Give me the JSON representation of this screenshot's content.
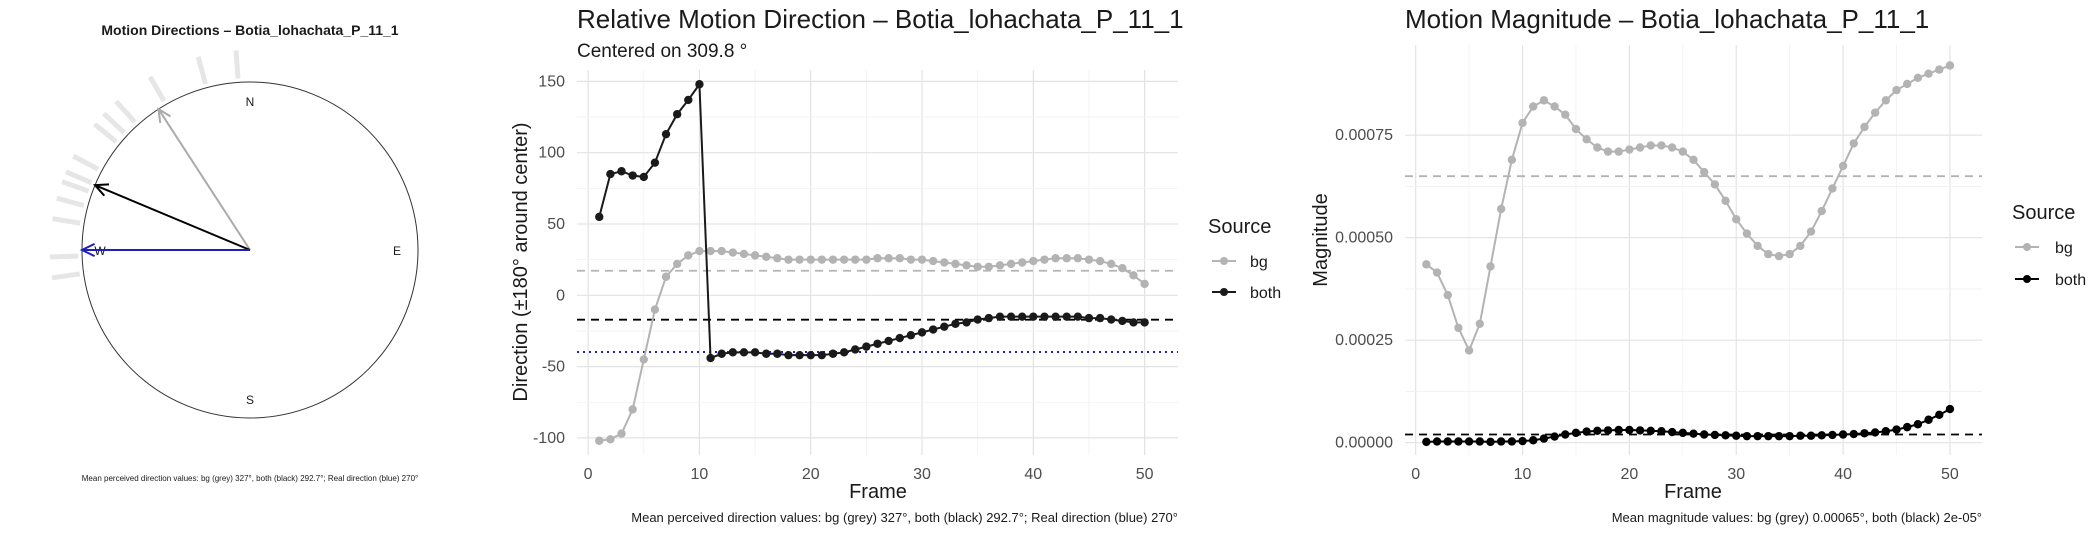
{
  "chart_data": [
    {
      "type": "circular",
      "title": "Motion Directions – Botia_lohachata_P_11_1",
      "compass_labels": [
        "N",
        "E",
        "S",
        "W"
      ],
      "arrows": [
        {
          "name": "bg",
          "direction_deg": 327,
          "color": "#aaaaaa"
        },
        {
          "name": "both",
          "direction_deg": 292.7,
          "color": "#000000"
        },
        {
          "name": "real",
          "direction_deg": 270,
          "color": "#1f1fbf"
        }
      ],
      "ticks_deg": [
        285,
        290,
        293,
        298,
        309,
        313,
        318,
        330,
        345,
        356,
        262,
        268,
        279
      ],
      "caption": "Mean perceived direction values: bg (grey) 327°, both (black) 292.7°; Real direction (blue) 270°"
    },
    {
      "type": "line",
      "title": "Relative Motion Direction – Botia_lohachata_P_11_1",
      "subtitle": "Centered on  309.8 °",
      "xlabel": "Frame",
      "ylabel": "Direction (±180° around center)",
      "xlim": [
        -1,
        53
      ],
      "ylim": [
        -112,
        158
      ],
      "xticks": [
        0,
        10,
        20,
        30,
        40,
        50
      ],
      "yticks": [
        -100,
        -50,
        0,
        50,
        100,
        150
      ],
      "x": [
        1,
        2,
        3,
        4,
        5,
        6,
        7,
        8,
        9,
        10,
        11,
        12,
        13,
        14,
        15,
        16,
        17,
        18,
        19,
        20,
        21,
        22,
        23,
        24,
        25,
        26,
        27,
        28,
        29,
        30,
        31,
        32,
        33,
        34,
        35,
        36,
        37,
        38,
        39,
        40,
        41,
        42,
        43,
        44,
        45,
        46,
        47,
        48,
        49,
        50
      ],
      "series": [
        {
          "name": "bg",
          "color": "#b3b3b3",
          "values": [
            -102,
            -101,
            -97,
            -80,
            -45,
            -10,
            13,
            22,
            28,
            31,
            31,
            31,
            30,
            29,
            28,
            27,
            26,
            25,
            25,
            25,
            25,
            25,
            25,
            25,
            25,
            26,
            26,
            26,
            25,
            25,
            24,
            23,
            22,
            21,
            20,
            20,
            21,
            22,
            23,
            24,
            25,
            26,
            26,
            26,
            25,
            24,
            22,
            19,
            14,
            8
          ]
        },
        {
          "name": "both",
          "color": "#1a1a1a",
          "values": [
            55,
            85,
            87,
            84,
            83,
            93,
            113,
            127,
            137,
            148,
            -44,
            -41,
            -40,
            -40,
            -40,
            -41,
            -41,
            -42,
            -42,
            -42,
            -42,
            -41,
            -40,
            -38,
            -36,
            -34,
            -32,
            -30,
            -28,
            -26,
            -24,
            -22,
            -20,
            -19,
            -17,
            -16,
            -15,
            -15,
            -15,
            -15,
            -15,
            -15,
            -15,
            -15,
            -16,
            -16,
            -17,
            -18,
            -19,
            -19
          ]
        }
      ],
      "hlines": [
        {
          "name": "bg mean",
          "y": 17.2,
          "color": "#b3b3b3",
          "style": "dashed"
        },
        {
          "name": "both mean",
          "y": -17.1,
          "color": "#000000",
          "style": "dashed"
        },
        {
          "name": "real",
          "y": -39.8,
          "color": "#1f1fbf",
          "style": "dotted"
        }
      ],
      "legend": {
        "title": "Source",
        "items": [
          "bg",
          "both"
        ],
        "position": "right"
      },
      "caption": "Mean perceived direction values: bg (grey) 327°, both (black) 292.7°; Real direction (blue) 270°"
    },
    {
      "type": "line",
      "title": "Motion Magnitude – Botia_lohachata_P_11_1",
      "xlabel": "Frame",
      "ylabel": "Magnitude",
      "xlim": [
        -1,
        53
      ],
      "ylim": [
        -3e-05,
        0.00097
      ],
      "xticks": [
        0,
        10,
        20,
        30,
        40,
        50
      ],
      "yticks": [
        0,
        0.00025,
        0.0005,
        0.00075
      ],
      "ytick_labels": [
        "0.00000",
        "0.00025",
        "0.00050",
        "0.00075"
      ],
      "x": [
        1,
        2,
        3,
        4,
        5,
        6,
        7,
        8,
        9,
        10,
        11,
        12,
        13,
        14,
        15,
        16,
        17,
        18,
        19,
        20,
        21,
        22,
        23,
        24,
        25,
        26,
        27,
        28,
        29,
        30,
        31,
        32,
        33,
        34,
        35,
        36,
        37,
        38,
        39,
        40,
        41,
        42,
        43,
        44,
        45,
        46,
        47,
        48,
        49,
        50
      ],
      "series": [
        {
          "name": "bg",
          "color": "#b3b3b3",
          "values": [
            0.000435,
            0.000415,
            0.00036,
            0.00028,
            0.000225,
            0.00029,
            0.00043,
            0.00057,
            0.00069,
            0.00078,
            0.00082,
            0.000835,
            0.00082,
            0.0008,
            0.000765,
            0.00074,
            0.00072,
            0.00071,
            0.00071,
            0.000715,
            0.00072,
            0.000725,
            0.000725,
            0.00072,
            0.00071,
            0.00069,
            0.00066,
            0.00063,
            0.00059,
            0.000545,
            0.00051,
            0.00048,
            0.00046,
            0.000455,
            0.00046,
            0.00048,
            0.000515,
            0.000565,
            0.00062,
            0.000675,
            0.00073,
            0.00077,
            0.000805,
            0.000835,
            0.00086,
            0.000875,
            0.00089,
            0.0009,
            0.00091,
            0.00092
          ]
        },
        {
          "name": "both",
          "color": "#000000",
          "values": [
            2e-06,
            3e-06,
            3e-06,
            3e-06,
            3e-06,
            3e-06,
            2e-06,
            3e-06,
            3e-06,
            4e-06,
            6e-06,
            1e-05,
            1.5e-05,
            2e-05,
            2.4e-05,
            2.7e-05,
            2.9e-05,
            3e-05,
            3.1e-05,
            3.1e-05,
            3e-05,
            2.9e-05,
            2.8e-05,
            2.6e-05,
            2.4e-05,
            2.2e-05,
            2e-05,
            1.9e-05,
            1.8e-05,
            1.7e-05,
            1.6e-05,
            1.6e-05,
            1.6e-05,
            1.6e-05,
            1.6e-05,
            1.7e-05,
            1.7e-05,
            1.8e-05,
            1.9e-05,
            2e-05,
            2.1e-05,
            2.3e-05,
            2.5e-05,
            2.8e-05,
            3.2e-05,
            3.8e-05,
            4.5e-05,
            5.6e-05,
            6.8e-05,
            8.2e-05
          ]
        }
      ],
      "hlines": [
        {
          "name": "bg mean",
          "y": 0.00065,
          "color": "#b3b3b3",
          "style": "dashed"
        },
        {
          "name": "both mean",
          "y": 2e-05,
          "color": "#000000",
          "style": "dashed"
        }
      ],
      "legend": {
        "title": "Source",
        "items": [
          "bg",
          "both"
        ],
        "position": "right"
      },
      "caption": "Mean magnitude values: bg (grey) 0.00065°, both (black) 2e-05°"
    }
  ]
}
